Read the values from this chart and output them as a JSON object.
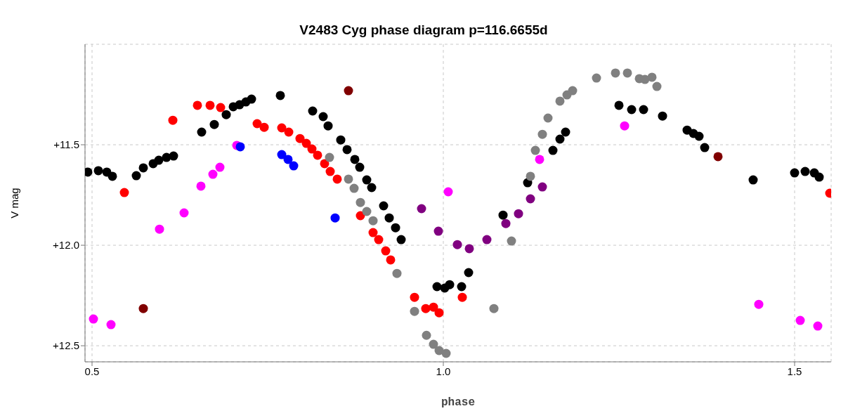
{
  "chart_data": {
    "type": "scatter",
    "title": "V2483 Cyg phase diagram p=116.6655d",
    "xlabel": "phase",
    "ylabel": "V mag",
    "marker": "circle",
    "grid": true,
    "xlim": [
      0.49,
      1.552
    ],
    "ylim": [
      12.58,
      11.0
    ],
    "xticks": [
      0.5,
      {
        "value": 1,
        "label": "1.0"
      },
      1.5
    ],
    "yticks": [
      {
        "value": 11.5,
        "label": "+11.5"
      },
      {
        "value": 12,
        "label": "+12.0"
      },
      {
        "value": 12.5,
        "label": "+12.5"
      }
    ],
    "series": [
      {
        "color": "#000000",
        "x": [
          0.494,
          0.509,
          0.521,
          0.529,
          0.563,
          0.573,
          0.587,
          0.595,
          0.606,
          0.616,
          0.656,
          0.674,
          0.691,
          0.701,
          0.71,
          0.719,
          0.727,
          0.768,
          0.814,
          0.829,
          0.836,
          0.854,
          0.863,
          0.874,
          0.881,
          0.891,
          0.898,
          0.915,
          0.923,
          0.932,
          0.94,
          0.991,
          1.002,
          1.009,
          1.026,
          1.036,
          1.085,
          1.12,
          1.156,
          1.166,
          1.174,
          1.25,
          1.268,
          1.285,
          1.312,
          1.347,
          1.356,
          1.364,
          1.372,
          1.441,
          1.5,
          1.515,
          1.528,
          1.535
        ],
        "values": [
          11.636,
          11.629,
          11.636,
          11.657,
          11.654,
          11.615,
          11.594,
          11.577,
          11.563,
          11.556,
          11.437,
          11.399,
          11.35,
          11.311,
          11.301,
          11.287,
          11.273,
          11.255,
          11.332,
          11.36,
          11.406,
          11.476,
          11.524,
          11.573,
          11.612,
          11.675,
          11.713,
          11.804,
          11.864,
          11.913,
          11.972,
          12.206,
          12.213,
          12.196,
          12.206,
          12.136,
          11.85,
          11.689,
          11.528,
          11.472,
          11.437,
          11.304,
          11.325,
          11.325,
          11.357,
          11.427,
          11.444,
          11.458,
          11.514,
          11.675,
          11.64,
          11.633,
          11.64,
          11.661
        ]
      },
      {
        "color": "#ff0000",
        "x": [
          0.546,
          0.615,
          0.65,
          0.668,
          0.683,
          0.735,
          0.745,
          0.77,
          0.78,
          0.796,
          0.805,
          0.813,
          0.821,
          0.831,
          0.839,
          0.849,
          0.882,
          0.9,
          0.908,
          0.918,
          0.925,
          0.959,
          0.975,
          0.986,
          0.994,
          1.027,
          1.55
        ],
        "values": [
          11.738,
          11.378,
          11.304,
          11.304,
          11.315,
          11.395,
          11.413,
          11.416,
          11.437,
          11.469,
          11.493,
          11.521,
          11.552,
          11.594,
          11.633,
          11.671,
          11.853,
          11.937,
          11.972,
          12.028,
          12.073,
          12.259,
          12.315,
          12.308,
          12.336,
          12.259,
          11.741
        ]
      },
      {
        "color": "#ff00ff",
        "x": [
          0.502,
          0.527,
          0.596,
          0.631,
          0.655,
          0.672,
          0.682,
          0.706,
          1.007,
          1.137,
          1.258,
          1.449,
          1.508,
          1.533
        ],
        "values": [
          12.367,
          12.395,
          11.92,
          11.839,
          11.706,
          11.647,
          11.612,
          11.503,
          11.734,
          11.573,
          11.406,
          12.294,
          12.374,
          12.402
        ]
      },
      {
        "color": "#0000ff",
        "x": [
          0.711,
          0.77,
          0.779,
          0.787,
          0.846
        ],
        "values": [
          11.51,
          11.549,
          11.573,
          11.605,
          11.864
        ]
      },
      {
        "color": "#808080",
        "x": [
          0.838,
          0.865,
          0.873,
          0.882,
          0.891,
          0.9,
          0.934,
          0.959,
          0.976,
          0.986,
          0.994,
          1.004,
          1.072,
          1.097,
          1.124,
          1.131,
          1.141,
          1.149,
          1.166,
          1.176,
          1.184,
          1.218,
          1.245,
          1.262,
          1.279,
          1.287,
          1.297,
          1.304
        ],
        "values": [
          11.563,
          11.671,
          11.717,
          11.787,
          11.832,
          11.878,
          12.14,
          12.329,
          12.448,
          12.493,
          12.524,
          12.538,
          12.315,
          11.979,
          11.657,
          11.528,
          11.448,
          11.367,
          11.283,
          11.252,
          11.231,
          11.168,
          11.143,
          11.143,
          11.171,
          11.175,
          11.164,
          11.21
        ]
      },
      {
        "color": "#800080",
        "x": [
          0.969,
          0.993,
          1.02,
          1.037,
          1.062,
          1.089,
          1.107,
          1.124,
          1.141
        ],
        "values": [
          11.818,
          11.93,
          11.997,
          12.017,
          11.972,
          11.892,
          11.843,
          11.769,
          11.71
        ]
      },
      {
        "color": "#800000",
        "x": [
          0.865,
          0.573,
          1.391
        ],
        "values": [
          11.231,
          12.315,
          11.559
        ]
      }
    ]
  }
}
